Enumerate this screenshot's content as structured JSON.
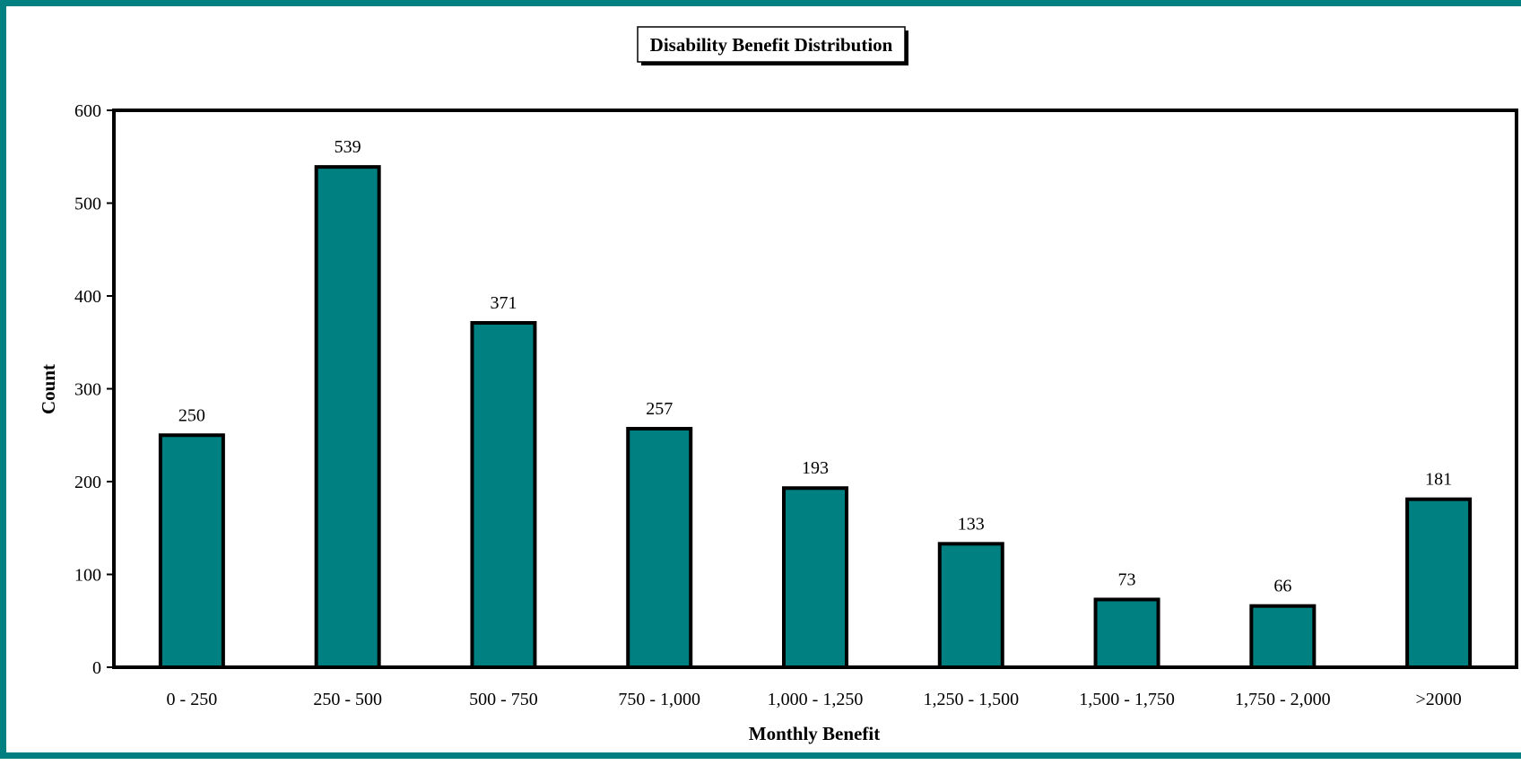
{
  "chart_data": {
    "type": "bar",
    "title": "Disability Benefit Distribution",
    "xlabel": "Monthly Benefit",
    "ylabel": "Count",
    "categories": [
      "0 - 250",
      "250 - 500",
      "500 - 750",
      "750 - 1,000",
      "1,000 - 1,250",
      "1,250 - 1,500",
      "1,500 - 1,750",
      "1,750 - 2,000",
      ">2000"
    ],
    "values": [
      250,
      539,
      371,
      257,
      193,
      133,
      73,
      66,
      181
    ],
    "ylim": [
      0,
      600
    ],
    "yticks": [
      0,
      100,
      200,
      300,
      400,
      500,
      600
    ],
    "grid": false,
    "legend": "none",
    "bar_color": "#008080",
    "frame_color": "#008080"
  }
}
